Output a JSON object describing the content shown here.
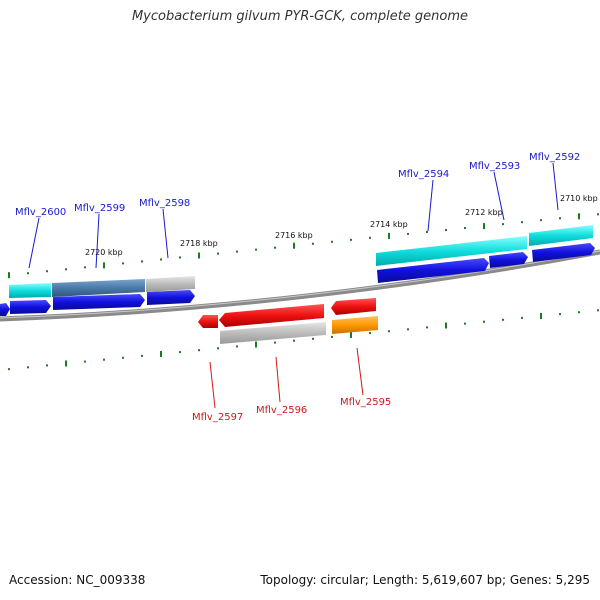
{
  "title": "Mycobacterium gilvum PYR-GCK, complete genome",
  "footer": {
    "accession": "Accession: NC_009338",
    "summary": "Topology: circular; Length: 5,619,607 bp; Genes: 5,295"
  },
  "scale_labels": [
    "2720 kbp",
    "2718 kbp",
    "2716 kbp",
    "2714 kbp",
    "2712 kbp",
    "2710 kbp"
  ],
  "gene_labels": {
    "forward": [
      "Mflv_2600",
      "Mflv_2599",
      "Mflv_2598",
      "Mflv_2594",
      "Mflv_2593",
      "Mflv_2592"
    ],
    "reverse": [
      "Mflv_2597",
      "Mflv_2596",
      "Mflv_2595"
    ]
  },
  "colors": {
    "forward_label": "#1a1acc",
    "reverse_label": "#cc1a1a",
    "cds_forward": "#1010dd",
    "cds_reverse": "#ee1111",
    "tick": "#1e7a1e",
    "backbone": "#8a8a8a"
  }
}
